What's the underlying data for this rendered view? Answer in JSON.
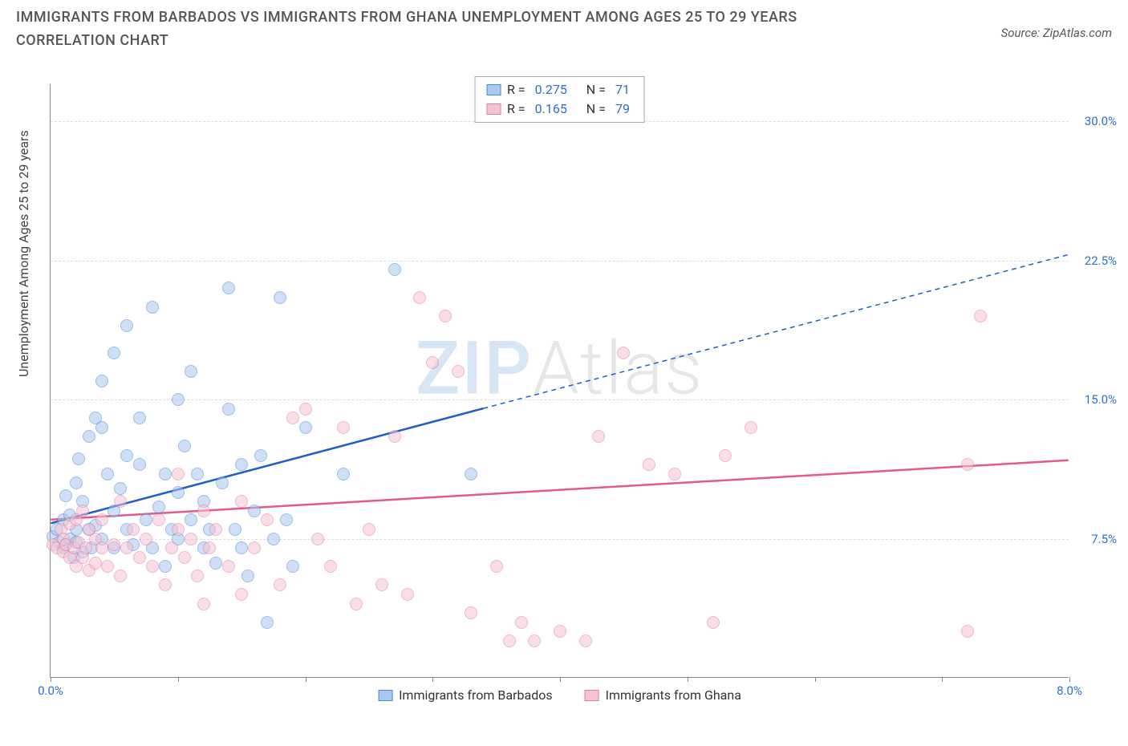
{
  "title": "IMMIGRANTS FROM BARBADOS VS IMMIGRANTS FROM GHANA UNEMPLOYMENT AMONG AGES 25 TO 29 YEARS CORRELATION CHART",
  "source_label": "Source: ZipAtlas.com",
  "y_axis_label": "Unemployment Among Ages 25 to 29 years",
  "watermark": {
    "part1": "ZIP",
    "part2": "Atlas"
  },
  "chart": {
    "type": "scatter",
    "background_color": "#ffffff",
    "grid_color": "#dddddd",
    "axis_color": "#888888",
    "tick_label_color": "#2b6fd4",
    "xlim": [
      0.0,
      8.0
    ],
    "ylim": [
      0.0,
      32.0
    ],
    "x_ticks": [
      0.0,
      1.0,
      2.0,
      3.0,
      4.0,
      5.0,
      6.0,
      7.0,
      8.0
    ],
    "x_tick_labels": {
      "0": "0.0%",
      "8": "8.0%"
    },
    "y_ticks": [
      7.5,
      15.0,
      22.5,
      30.0
    ],
    "y_tick_labels": [
      "7.5%",
      "15.0%",
      "22.5%",
      "30.0%"
    ],
    "marker_radius": 8,
    "marker_opacity": 0.55,
    "label_fontsize": 16,
    "tick_fontsize": 15,
    "title_fontsize": 18
  },
  "series": [
    {
      "name": "Immigrants from Barbados",
      "fill_color": "#a8c8f0",
      "border_color": "#4a88d8",
      "trend_color": "#1f5fc4",
      "R": "0.275",
      "N": "71",
      "trend": {
        "x1": 0.0,
        "y1": 8.3,
        "x2_solid": 3.4,
        "y2_solid": 14.5,
        "x2_dash": 8.0,
        "y2_dash": 22.8
      },
      "points": [
        [
          0.02,
          7.6
        ],
        [
          0.05,
          8.0
        ],
        [
          0.07,
          7.3
        ],
        [
          0.1,
          8.5
        ],
        [
          0.1,
          7.0
        ],
        [
          0.12,
          9.8
        ],
        [
          0.12,
          7.2
        ],
        [
          0.15,
          8.8
        ],
        [
          0.15,
          7.5
        ],
        [
          0.18,
          6.5
        ],
        [
          0.2,
          10.5
        ],
        [
          0.2,
          8.0
        ],
        [
          0.2,
          7.3
        ],
        [
          0.22,
          11.8
        ],
        [
          0.25,
          9.5
        ],
        [
          0.25,
          6.8
        ],
        [
          0.3,
          8.0
        ],
        [
          0.3,
          13.0
        ],
        [
          0.32,
          7.0
        ],
        [
          0.35,
          14.0
        ],
        [
          0.35,
          8.2
        ],
        [
          0.4,
          16.0
        ],
        [
          0.4,
          7.5
        ],
        [
          0.4,
          13.5
        ],
        [
          0.45,
          11.0
        ],
        [
          0.5,
          9.0
        ],
        [
          0.5,
          7.0
        ],
        [
          0.5,
          17.5
        ],
        [
          0.55,
          10.2
        ],
        [
          0.6,
          8.0
        ],
        [
          0.6,
          12.0
        ],
        [
          0.6,
          19.0
        ],
        [
          0.65,
          7.2
        ],
        [
          0.7,
          11.5
        ],
        [
          0.7,
          14.0
        ],
        [
          0.75,
          8.5
        ],
        [
          0.8,
          20.0
        ],
        [
          0.8,
          7.0
        ],
        [
          0.85,
          9.2
        ],
        [
          0.9,
          11.0
        ],
        [
          0.9,
          6.0
        ],
        [
          0.95,
          8.0
        ],
        [
          1.0,
          15.0
        ],
        [
          1.0,
          10.0
        ],
        [
          1.0,
          7.5
        ],
        [
          1.05,
          12.5
        ],
        [
          1.1,
          8.5
        ],
        [
          1.1,
          16.5
        ],
        [
          1.15,
          11.0
        ],
        [
          1.2,
          7.0
        ],
        [
          1.2,
          9.5
        ],
        [
          1.25,
          8.0
        ],
        [
          1.3,
          6.2
        ],
        [
          1.35,
          10.5
        ],
        [
          1.4,
          14.5
        ],
        [
          1.4,
          21.0
        ],
        [
          1.45,
          8.0
        ],
        [
          1.5,
          11.5
        ],
        [
          1.5,
          7.0
        ],
        [
          1.55,
          5.5
        ],
        [
          1.6,
          9.0
        ],
        [
          1.65,
          12.0
        ],
        [
          1.7,
          3.0
        ],
        [
          1.75,
          7.5
        ],
        [
          1.8,
          20.5
        ],
        [
          1.85,
          8.5
        ],
        [
          1.9,
          6.0
        ],
        [
          2.0,
          13.5
        ],
        [
          2.3,
          11.0
        ],
        [
          2.7,
          22.0
        ],
        [
          3.3,
          11.0
        ]
      ]
    },
    {
      "name": "Immigrants from Ghana",
      "fill_color": "#f5c4d4",
      "border_color": "#e67ba2",
      "trend_color": "#e35a8a",
      "R": "0.165",
      "N": "79",
      "trend": {
        "x1": 0.0,
        "y1": 8.5,
        "x2_solid": 8.0,
        "y2_solid": 11.7,
        "x2_dash": 8.0,
        "y2_dash": 11.7
      },
      "points": [
        [
          0.02,
          7.2
        ],
        [
          0.05,
          7.0
        ],
        [
          0.08,
          8.0
        ],
        [
          0.1,
          7.5
        ],
        [
          0.1,
          6.8
        ],
        [
          0.12,
          7.2
        ],
        [
          0.15,
          8.3
        ],
        [
          0.15,
          6.5
        ],
        [
          0.18,
          7.0
        ],
        [
          0.2,
          8.5
        ],
        [
          0.2,
          6.0
        ],
        [
          0.22,
          7.3
        ],
        [
          0.25,
          9.0
        ],
        [
          0.25,
          6.5
        ],
        [
          0.28,
          7.0
        ],
        [
          0.3,
          8.0
        ],
        [
          0.3,
          5.8
        ],
        [
          0.35,
          7.5
        ],
        [
          0.35,
          6.2
        ],
        [
          0.4,
          7.0
        ],
        [
          0.4,
          8.5
        ],
        [
          0.45,
          6.0
        ],
        [
          0.5,
          7.2
        ],
        [
          0.55,
          9.5
        ],
        [
          0.55,
          5.5
        ],
        [
          0.6,
          7.0
        ],
        [
          0.65,
          8.0
        ],
        [
          0.7,
          6.5
        ],
        [
          0.75,
          7.5
        ],
        [
          0.8,
          6.0
        ],
        [
          0.85,
          8.5
        ],
        [
          0.9,
          5.0
        ],
        [
          0.95,
          7.0
        ],
        [
          1.0,
          8.0
        ],
        [
          1.0,
          11.0
        ],
        [
          1.05,
          6.5
        ],
        [
          1.1,
          7.5
        ],
        [
          1.15,
          5.5
        ],
        [
          1.2,
          9.0
        ],
        [
          1.2,
          4.0
        ],
        [
          1.25,
          7.0
        ],
        [
          1.3,
          8.0
        ],
        [
          1.4,
          6.0
        ],
        [
          1.5,
          9.5
        ],
        [
          1.5,
          4.5
        ],
        [
          1.6,
          7.0
        ],
        [
          1.7,
          8.5
        ],
        [
          1.8,
          5.0
        ],
        [
          1.9,
          14.0
        ],
        [
          2.0,
          14.5
        ],
        [
          2.1,
          7.5
        ],
        [
          2.2,
          6.0
        ],
        [
          2.3,
          13.5
        ],
        [
          2.4,
          4.0
        ],
        [
          2.5,
          8.0
        ],
        [
          2.6,
          5.0
        ],
        [
          2.7,
          13.0
        ],
        [
          2.8,
          4.5
        ],
        [
          2.9,
          20.5
        ],
        [
          3.0,
          17.0
        ],
        [
          3.1,
          19.5
        ],
        [
          3.2,
          16.5
        ],
        [
          3.3,
          3.5
        ],
        [
          3.5,
          6.0
        ],
        [
          3.6,
          2.0
        ],
        [
          3.7,
          3.0
        ],
        [
          3.8,
          2.0
        ],
        [
          4.0,
          2.5
        ],
        [
          4.2,
          2.0
        ],
        [
          4.3,
          13.0
        ],
        [
          4.5,
          17.5
        ],
        [
          4.7,
          11.5
        ],
        [
          4.9,
          11.0
        ],
        [
          5.2,
          3.0
        ],
        [
          5.3,
          12.0
        ],
        [
          5.5,
          13.5
        ],
        [
          7.2,
          11.5
        ],
        [
          7.3,
          19.5
        ],
        [
          7.2,
          2.5
        ]
      ]
    }
  ],
  "legend_top": {
    "r_label": "R =",
    "n_label": "N ="
  },
  "legend_bottom_labels": [
    "Immigrants from Barbados",
    "Immigrants from Ghana"
  ]
}
